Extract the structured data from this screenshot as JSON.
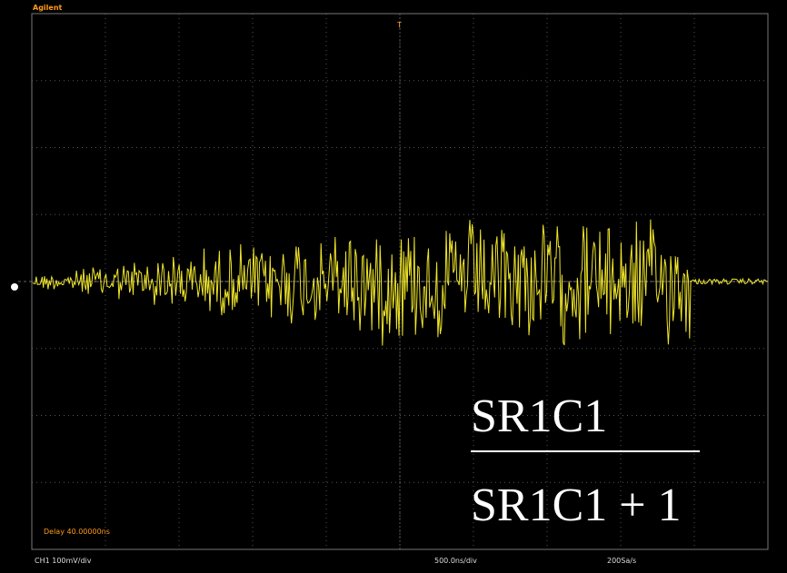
{
  "header": {
    "brand": "Agilent",
    "trigger_marker": "T"
  },
  "status": {
    "delay": "Delay 40.00000ns",
    "channel": "CH1 100mV/div",
    "timebase": "500.0ns/div",
    "sample_rate": "200Sa/s"
  },
  "formula": {
    "numerator": "SR1C1",
    "denominator": "SR1C1 + 1"
  }
}
